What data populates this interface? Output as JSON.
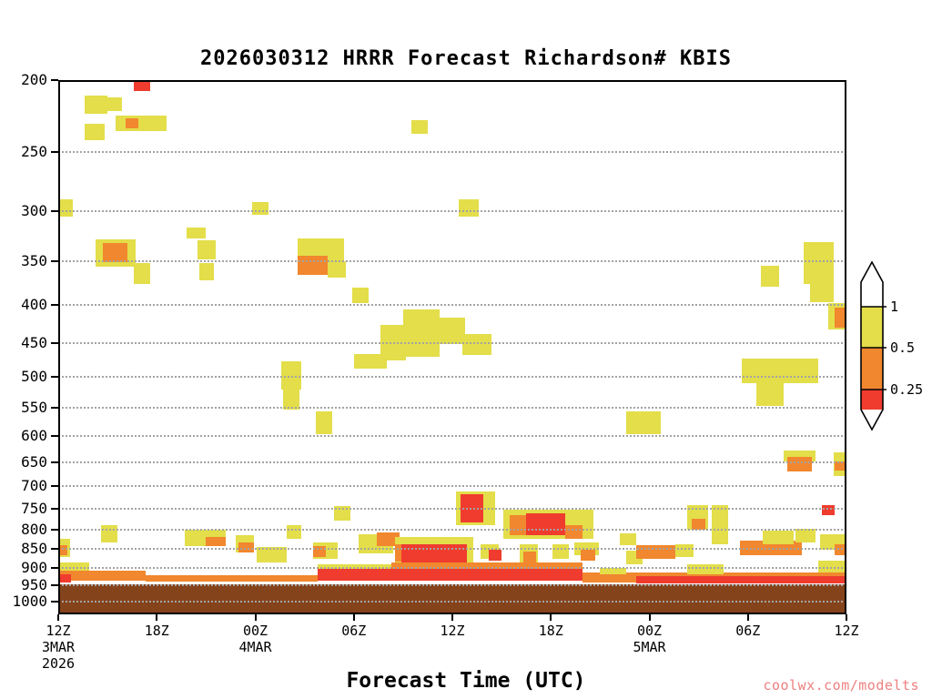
{
  "title": "2026030312 HRRR Forecast Richardson# KBIS",
  "xlabel": "Forecast Time (UTC)",
  "watermark": "coolwx.com/modelts",
  "chart_data": {
    "type": "heatmap",
    "title": "2026030312 HRRR Forecast Richardson# KBIS",
    "x_axis": {
      "label": "Forecast Time (UTC)",
      "range_hours": [
        0,
        48
      ],
      "ticks": [
        {
          "hour": 0,
          "label": "12Z",
          "date": "3MAR",
          "year": "2026"
        },
        {
          "hour": 6,
          "label": "18Z"
        },
        {
          "hour": 12,
          "label": "00Z",
          "date": "4MAR"
        },
        {
          "hour": 18,
          "label": "06Z"
        },
        {
          "hour": 24,
          "label": "12Z"
        },
        {
          "hour": 30,
          "label": "18Z"
        },
        {
          "hour": 36,
          "label": "00Z",
          "date": "5MAR"
        },
        {
          "hour": 42,
          "label": "06Z"
        },
        {
          "hour": 48,
          "label": "12Z"
        }
      ]
    },
    "y_axis": {
      "scale": "log",
      "range": [
        200,
        1040
      ],
      "ticks": [
        200,
        250,
        300,
        350,
        400,
        450,
        500,
        550,
        600,
        650,
        700,
        750,
        800,
        850,
        900,
        950,
        1000
      ]
    },
    "legend": {
      "labels": [
        "1",
        "0.5",
        "0.25"
      ],
      "colors": [
        "#ffffff",
        "#e3de4a",
        "#f1872e",
        "#ef3c2e"
      ]
    },
    "colors": {
      "y": "#e3de4a",
      "o": "#f1872e",
      "r": "#ef3c2e",
      "terrain": "#85431c",
      "grid": "#a3a3a3"
    },
    "terrain_top_hpa": 948,
    "cells_format": [
      "t_start_hr",
      "t_end_hr",
      "p_top_hpa",
      "p_bottom_hpa",
      "color_key"
    ],
    "cells": [
      [
        4.6,
        5.6,
        200,
        207,
        "r"
      ],
      [
        1.6,
        3.0,
        210,
        222,
        "y"
      ],
      [
        3.0,
        3.9,
        211,
        220,
        "y"
      ],
      [
        3.5,
        6.6,
        223,
        234,
        "y"
      ],
      [
        4.1,
        4.9,
        225,
        232,
        "o"
      ],
      [
        1.6,
        2.8,
        229,
        241,
        "y"
      ],
      [
        21.5,
        22.5,
        226,
        236,
        "y"
      ],
      [
        0.0,
        0.9,
        289,
        305,
        "y"
      ],
      [
        11.8,
        12.8,
        291,
        303,
        "y"
      ],
      [
        24.4,
        25.6,
        289,
        305,
        "y"
      ],
      [
        7.8,
        9.0,
        315,
        326,
        "y"
      ],
      [
        2.3,
        4.7,
        327,
        356,
        "y"
      ],
      [
        2.7,
        4.2,
        331,
        351,
        "o"
      ],
      [
        4.6,
        5.6,
        352,
        375,
        "y"
      ],
      [
        8.5,
        9.6,
        328,
        348,
        "y"
      ],
      [
        8.6,
        9.5,
        352,
        371,
        "y"
      ],
      [
        14.6,
        17.4,
        326,
        355,
        "y"
      ],
      [
        14.6,
        16.4,
        344,
        365,
        "o"
      ],
      [
        16.4,
        17.5,
        350,
        368,
        "y"
      ],
      [
        17.9,
        18.9,
        379,
        398,
        "y"
      ],
      [
        42.8,
        43.9,
        355,
        378,
        "y"
      ],
      [
        45.4,
        47.2,
        330,
        375,
        "y"
      ],
      [
        45.8,
        47.2,
        375,
        397,
        "y"
      ],
      [
        46.9,
        48.0,
        398,
        432,
        "y"
      ],
      [
        47.3,
        48.0,
        404,
        429,
        "o"
      ],
      [
        21.0,
        23.2,
        406,
        470,
        "y"
      ],
      [
        19.6,
        21.2,
        426,
        475,
        "y"
      ],
      [
        23.0,
        24.8,
        416,
        451,
        "y"
      ],
      [
        24.6,
        26.4,
        438,
        467,
        "y"
      ],
      [
        18.0,
        20.0,
        466,
        487,
        "y"
      ],
      [
        13.6,
        14.8,
        476,
        520,
        "y"
      ],
      [
        13.7,
        14.7,
        520,
        553,
        "y"
      ],
      [
        41.6,
        46.3,
        473,
        509,
        "y"
      ],
      [
        42.5,
        44.2,
        505,
        546,
        "y"
      ],
      [
        15.7,
        16.7,
        556,
        597,
        "y"
      ],
      [
        34.6,
        36.7,
        556,
        597,
        "y"
      ],
      [
        44.2,
        46.1,
        627,
        648,
        "y"
      ],
      [
        44.4,
        45.9,
        640,
        669,
        "o"
      ],
      [
        47.2,
        48.0,
        630,
        678,
        "y"
      ],
      [
        47.3,
        48.0,
        648,
        668,
        "o"
      ],
      [
        24.2,
        26.6,
        712,
        790,
        "y"
      ],
      [
        24.5,
        25.9,
        717,
        783,
        "r"
      ],
      [
        16.8,
        17.8,
        745,
        778,
        "y"
      ],
      [
        27.1,
        32.6,
        752,
        824,
        "y"
      ],
      [
        28.5,
        30.9,
        762,
        815,
        "r"
      ],
      [
        27.5,
        28.5,
        765,
        815,
        "o"
      ],
      [
        30.9,
        31.9,
        790,
        824,
        "o"
      ],
      [
        38.3,
        39.6,
        743,
        800,
        "y"
      ],
      [
        38.6,
        39.4,
        775,
        800,
        "o"
      ],
      [
        46.5,
        47.3,
        743,
        766,
        "r"
      ],
      [
        39.8,
        40.8,
        743,
        838,
        "y"
      ],
      [
        2.6,
        3.6,
        790,
        833,
        "y"
      ],
      [
        7.7,
        10.2,
        800,
        842,
        "y"
      ],
      [
        9.0,
        10.2,
        818,
        842,
        "o"
      ],
      [
        10.8,
        11.9,
        814,
        859,
        "y"
      ],
      [
        11.0,
        11.9,
        834,
        859,
        "o"
      ],
      [
        12.1,
        13.9,
        846,
        886,
        "y"
      ],
      [
        13.9,
        14.8,
        790,
        824,
        "y"
      ],
      [
        15.5,
        17.0,
        832,
        876,
        "y"
      ],
      [
        15.5,
        16.3,
        842,
        871,
        "o"
      ],
      [
        18.3,
        20.4,
        813,
        861,
        "y"
      ],
      [
        19.4,
        20.8,
        808,
        842,
        "o"
      ],
      [
        20.5,
        25.3,
        818,
        890,
        "y"
      ],
      [
        20.5,
        21.1,
        838,
        884,
        "o"
      ],
      [
        20.9,
        24.9,
        837,
        886,
        "r"
      ],
      [
        25.7,
        26.8,
        837,
        876,
        "y"
      ],
      [
        26.2,
        27.0,
        851,
        881,
        "r"
      ],
      [
        28.1,
        29.2,
        837,
        886,
        "y"
      ],
      [
        28.3,
        29.1,
        856,
        886,
        "o"
      ],
      [
        30.1,
        31.1,
        837,
        876,
        "y"
      ],
      [
        31.4,
        32.9,
        832,
        866,
        "y"
      ],
      [
        31.8,
        32.7,
        851,
        881,
        "o"
      ],
      [
        34.2,
        35.2,
        810,
        840,
        "y"
      ],
      [
        34.6,
        35.6,
        855,
        891,
        "y"
      ],
      [
        35.2,
        37.6,
        841,
        876,
        "o"
      ],
      [
        37.6,
        38.7,
        837,
        871,
        "y"
      ],
      [
        41.5,
        45.3,
        828,
        866,
        "o"
      ],
      [
        42.9,
        44.8,
        803,
        838,
        "y"
      ],
      [
        44.9,
        46.1,
        799,
        833,
        "y"
      ],
      [
        46.4,
        48.0,
        813,
        852,
        "y"
      ],
      [
        47.3,
        48.0,
        837,
        866,
        "o"
      ],
      [
        0.0,
        0.7,
        823,
        871,
        "y"
      ],
      [
        0.0,
        0.55,
        841,
        866,
        "o"
      ],
      [
        0.0,
        1.9,
        885,
        916,
        "y"
      ],
      [
        0.0,
        5.3,
        910,
        937,
        "o"
      ],
      [
        0.0,
        0.8,
        920,
        943,
        "r"
      ],
      [
        5.3,
        15.8,
        922,
        940,
        "o"
      ],
      [
        15.8,
        20.5,
        890,
        915,
        "y"
      ],
      [
        20.3,
        31.9,
        885,
        910,
        "o"
      ],
      [
        15.8,
        31.9,
        905,
        937,
        "r"
      ],
      [
        31.9,
        48.0,
        915,
        942,
        "o"
      ],
      [
        35.2,
        48.0,
        925,
        945,
        "r"
      ],
      [
        33.0,
        34.6,
        900,
        920,
        "y"
      ],
      [
        38.3,
        40.5,
        890,
        920,
        "y"
      ],
      [
        46.3,
        48.0,
        880,
        915,
        "y"
      ]
    ]
  }
}
